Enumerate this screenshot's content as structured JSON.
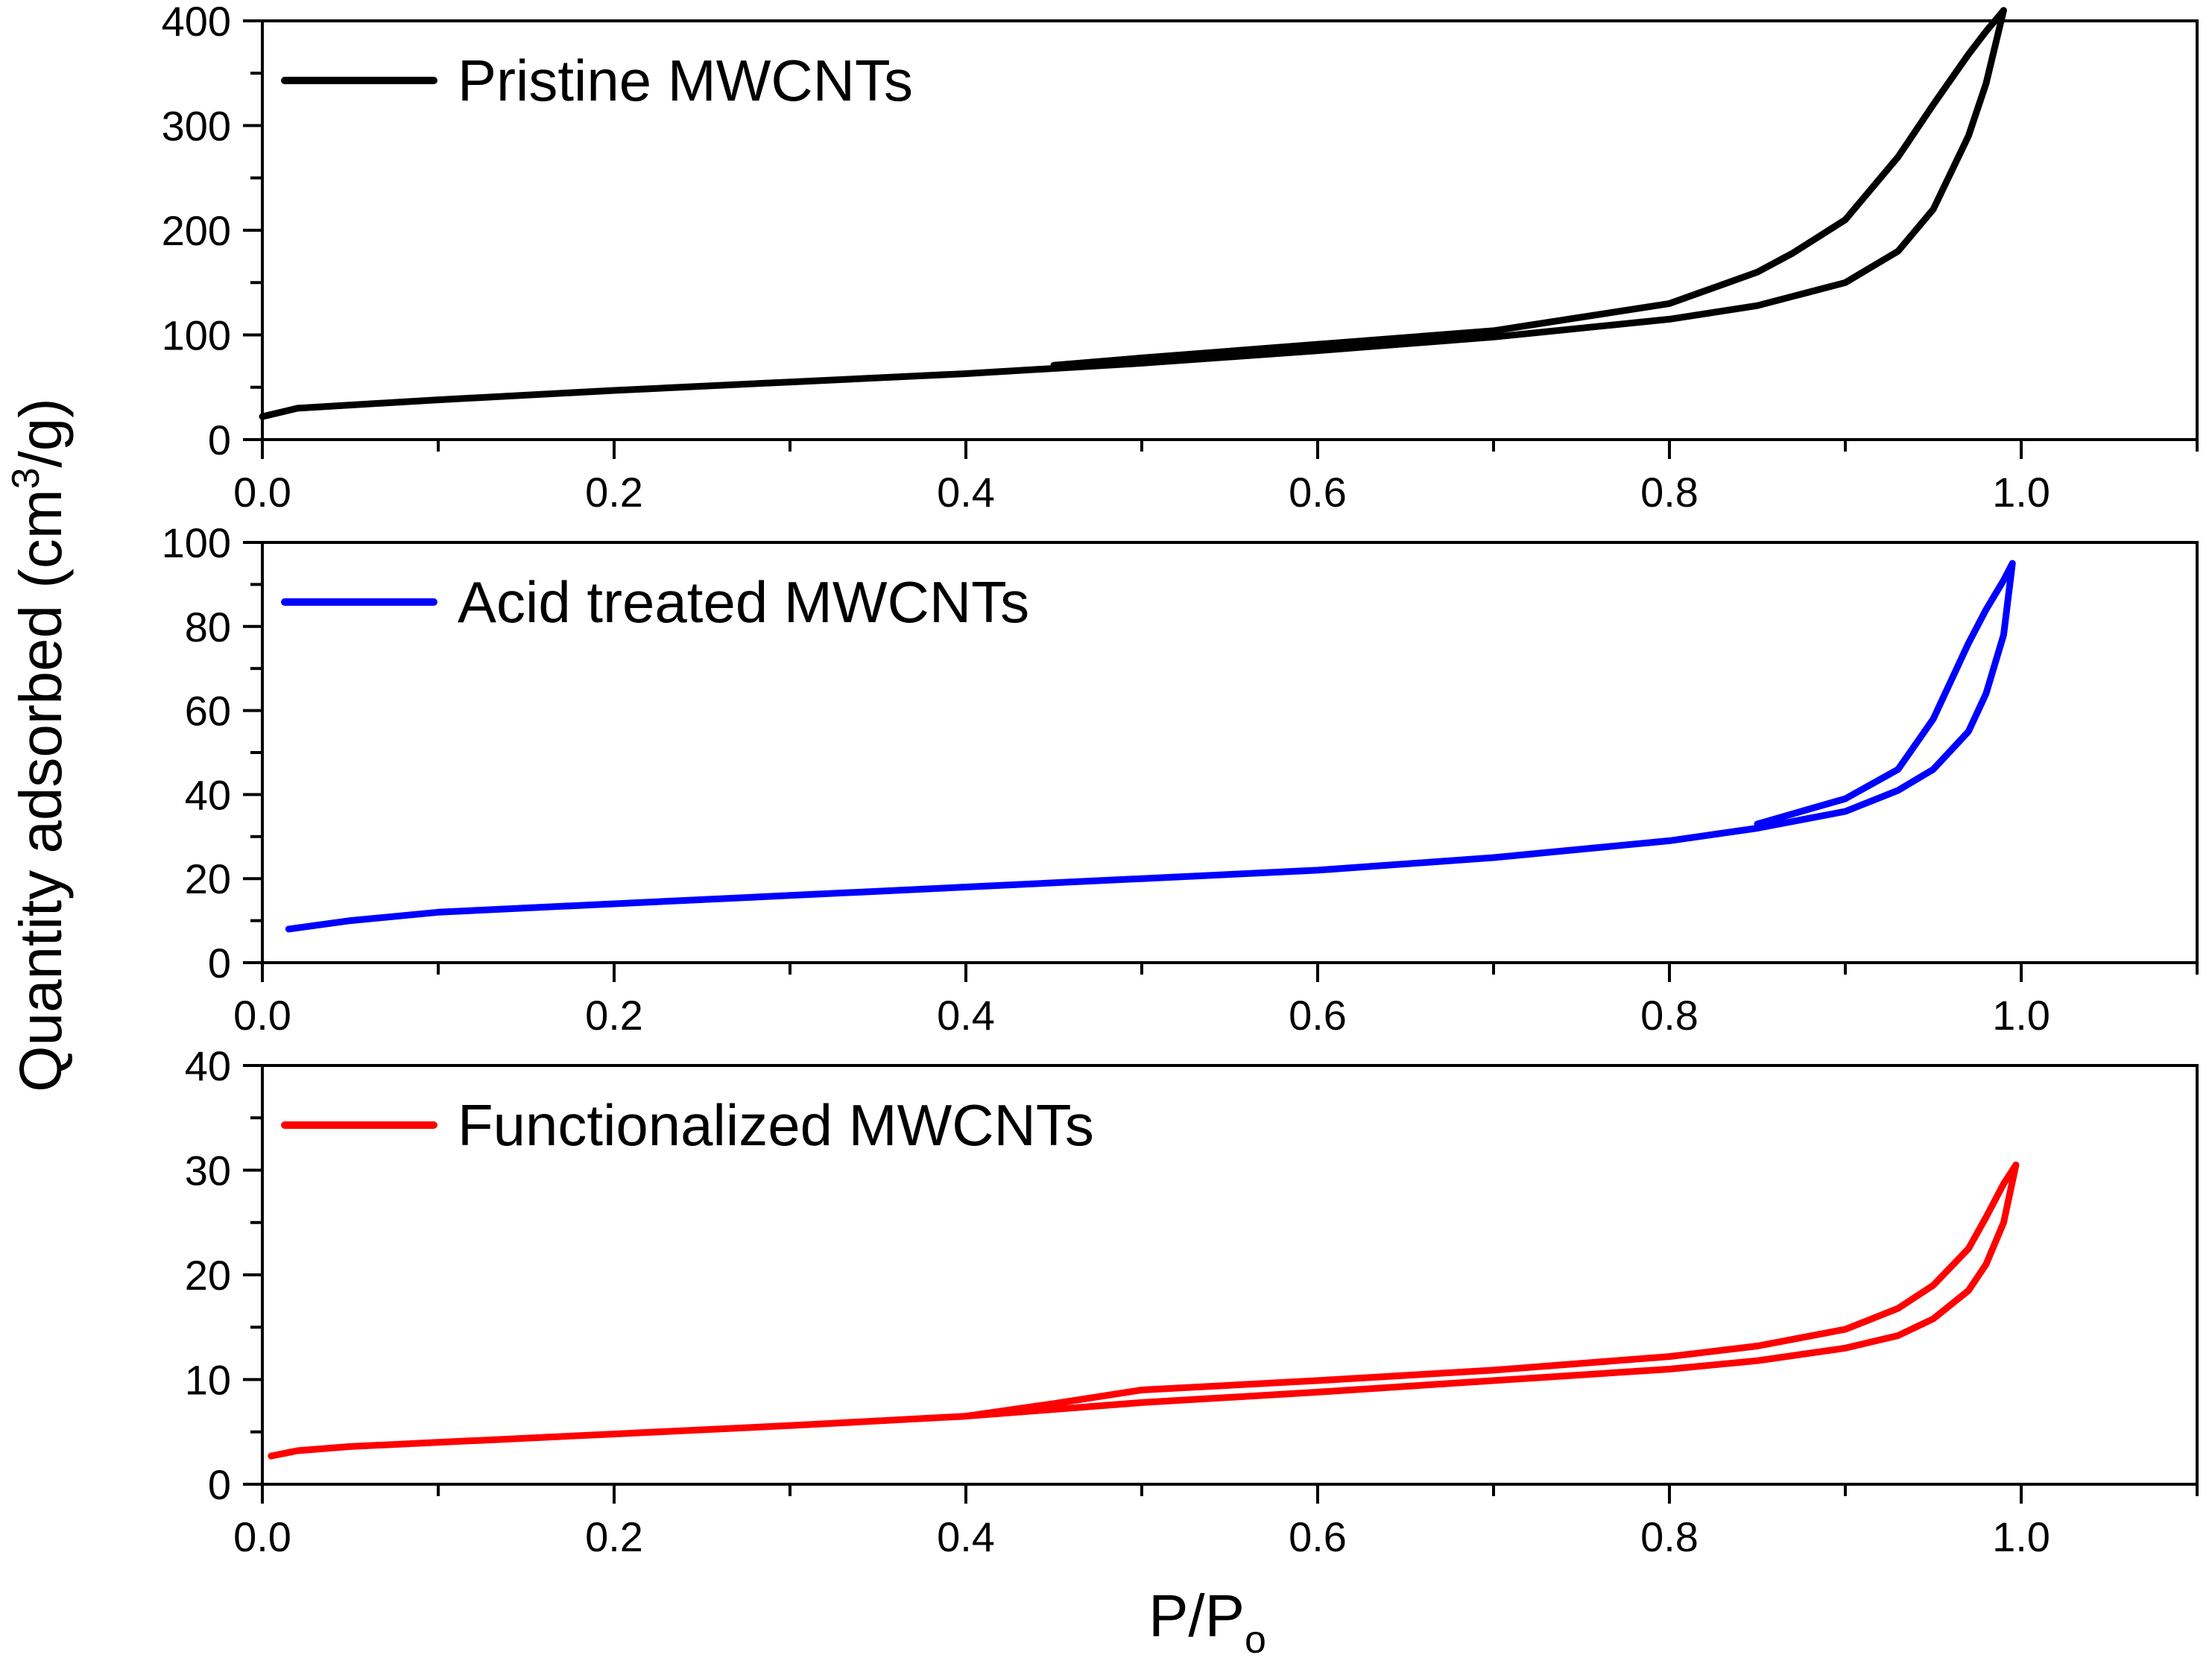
{
  "figure": {
    "ylabel_main": "Quantity adsorbed (cm",
    "ylabel_sup": "3",
    "ylabel_end": "/g)",
    "xlabel_main": "P/P",
    "xlabel_sub": "o"
  },
  "chart_data": [
    {
      "type": "line",
      "legend": "Pristine MWCNTs",
      "color": "#000000",
      "xlim": [
        0.0,
        1.1
      ],
      "ylim": [
        0,
        400
      ],
      "x_ticks": [
        "0.0",
        "0.2",
        "0.4",
        "0.6",
        "0.8",
        "1.0"
      ],
      "y_ticks": [
        "0",
        "100",
        "200",
        "300",
        "400"
      ],
      "y_tick_values": [
        0,
        100,
        200,
        300,
        400
      ],
      "series": [
        {
          "name": "adsorption",
          "x": [
            0.0,
            0.02,
            0.05,
            0.1,
            0.2,
            0.3,
            0.4,
            0.5,
            0.6,
            0.7,
            0.8,
            0.85,
            0.9,
            0.93,
            0.95,
            0.97,
            0.98,
            0.99
          ],
          "y": [
            22,
            30,
            33,
            38,
            47,
            55,
            63,
            73,
            85,
            98,
            115,
            128,
            150,
            180,
            220,
            290,
            340,
            410
          ]
        },
        {
          "name": "desorption",
          "x": [
            0.99,
            0.98,
            0.97,
            0.95,
            0.93,
            0.9,
            0.87,
            0.85,
            0.8,
            0.7,
            0.6,
            0.5,
            0.45
          ],
          "y": [
            410,
            390,
            368,
            320,
            270,
            210,
            178,
            160,
            130,
            104,
            91,
            78,
            71
          ]
        }
      ]
    },
    {
      "type": "line",
      "legend": "Acid treated MWCNTs",
      "color": "#0000ff",
      "xlim": [
        0.0,
        1.1
      ],
      "ylim": [
        0,
        100
      ],
      "x_ticks": [
        "0.0",
        "0.2",
        "0.4",
        "0.6",
        "0.8",
        "1.0"
      ],
      "y_ticks": [
        "0",
        "20",
        "40",
        "60",
        "80",
        "100"
      ],
      "y_tick_values": [
        0,
        20,
        40,
        60,
        80,
        100
      ],
      "series": [
        {
          "name": "adsorption",
          "x": [
            0.015,
            0.05,
            0.1,
            0.2,
            0.3,
            0.4,
            0.5,
            0.6,
            0.7,
            0.8,
            0.85,
            0.9,
            0.93,
            0.95,
            0.97,
            0.98,
            0.99,
            0.995
          ],
          "y": [
            8,
            10,
            12,
            14,
            16,
            18,
            20,
            22,
            25,
            29,
            32,
            36,
            41,
            46,
            55,
            64,
            78,
            95
          ]
        },
        {
          "name": "desorption",
          "x": [
            0.995,
            0.99,
            0.98,
            0.97,
            0.95,
            0.93,
            0.9,
            0.85
          ],
          "y": [
            95,
            91,
            84,
            76,
            58,
            46,
            39,
            33
          ]
        }
      ]
    },
    {
      "type": "line",
      "legend": "Functionalized MWCNTs",
      "color": "#ff0000",
      "xlim": [
        0.0,
        1.1
      ],
      "ylim": [
        0,
        40
      ],
      "x_ticks": [
        "0.0",
        "0.2",
        "0.4",
        "0.6",
        "0.8",
        "1.0"
      ],
      "y_ticks": [
        "0",
        "10",
        "20",
        "30",
        "40"
      ],
      "y_tick_values": [
        0,
        10,
        20,
        30,
        40
      ],
      "series": [
        {
          "name": "adsorption",
          "x": [
            0.005,
            0.02,
            0.05,
            0.1,
            0.2,
            0.3,
            0.4,
            0.5,
            0.6,
            0.7,
            0.8,
            0.85,
            0.9,
            0.93,
            0.95,
            0.97,
            0.98,
            0.99,
            0.997
          ],
          "y": [
            2.7,
            3.2,
            3.6,
            4.0,
            4.8,
            5.6,
            6.5,
            7.8,
            8.8,
            9.9,
            11.0,
            11.8,
            13.0,
            14.2,
            15.8,
            18.5,
            21.0,
            25.0,
            30.5
          ]
        },
        {
          "name": "desorption",
          "x": [
            0.997,
            0.99,
            0.98,
            0.97,
            0.95,
            0.93,
            0.9,
            0.85,
            0.8,
            0.7,
            0.6,
            0.5,
            0.45,
            0.4
          ],
          "y": [
            30.5,
            28.7,
            25.5,
            22.5,
            19.0,
            16.8,
            14.8,
            13.2,
            12.2,
            10.9,
            9.9,
            9.0,
            7.7,
            6.5
          ]
        }
      ]
    }
  ]
}
